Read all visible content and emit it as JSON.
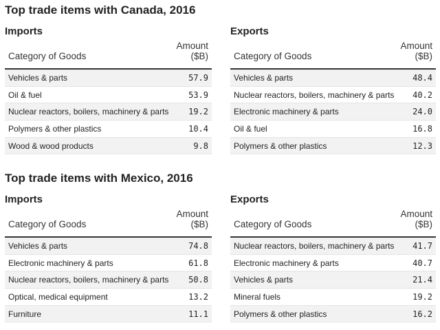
{
  "sections": [
    {
      "title": "Top trade items with Canada, 2016",
      "tables": [
        {
          "heading": "Imports",
          "header": {
            "category": "Category of Goods",
            "amount": "Amount ($B)"
          },
          "rows": [
            [
              "Vehicles & parts",
              "57.9"
            ],
            [
              "Oil & fuel",
              "53.9"
            ],
            [
              "Nuclear reactors, boilers, machinery & parts",
              "19.2"
            ],
            [
              "Polymers & other plastics",
              "10.4"
            ],
            [
              "Wood & wood products",
              "9.8"
            ]
          ]
        },
        {
          "heading": "Exports",
          "header": {
            "category": "Category of Goods",
            "amount": "Amount ($B)"
          },
          "rows": [
            [
              "Vehicles & parts",
              "48.4"
            ],
            [
              "Nuclear reactors, boilers, machinery & parts",
              "40.2"
            ],
            [
              "Electronic machinery & parts",
              "24.0"
            ],
            [
              "Oil & fuel",
              "16.8"
            ],
            [
              "Polymers & other plastics",
              "12.3"
            ]
          ]
        }
      ]
    },
    {
      "title": "Top trade items with Mexico, 2016",
      "tables": [
        {
          "heading": "Imports",
          "header": {
            "category": "Category of Goods",
            "amount": "Amount ($B)"
          },
          "rows": [
            [
              "Vehicles & parts",
              "74.8"
            ],
            [
              "Electronic machinery & parts",
              "61.8"
            ],
            [
              "Nuclear reactors, boilers, machinery & parts",
              "50.8"
            ],
            [
              "Optical, medical equipment",
              "13.2"
            ],
            [
              "Furniture",
              "11.1"
            ]
          ]
        },
        {
          "heading": "Exports",
          "header": {
            "category": "Category of Goods",
            "amount": "Amount ($B)"
          },
          "rows": [
            [
              "Nuclear reactors, boilers, machinery & parts",
              "41.7"
            ],
            [
              "Electronic machinery & parts",
              "40.7"
            ],
            [
              "Vehicles & parts",
              "21.4"
            ],
            [
              "Mineral fuels",
              "19.2"
            ],
            [
              "Polymers & other plastics",
              "16.2"
            ]
          ]
        }
      ]
    }
  ]
}
